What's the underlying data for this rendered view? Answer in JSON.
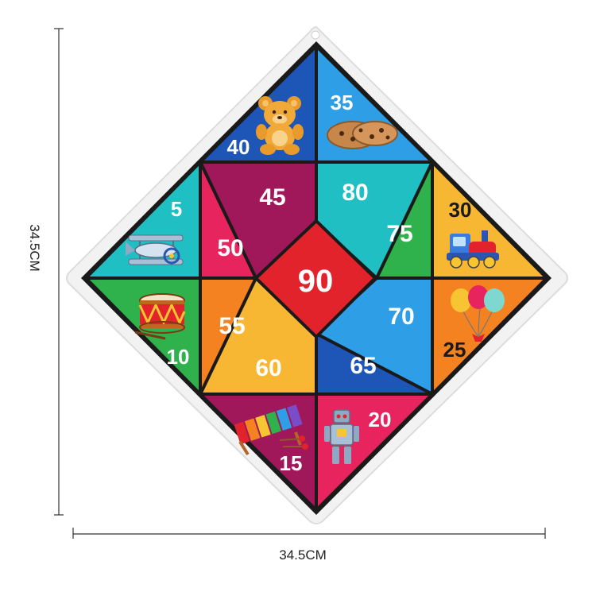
{
  "dimensions": {
    "width_label": "34.5CM",
    "height_label": "34.5CM"
  },
  "board": {
    "center": "90",
    "scores": {
      "s5": "5",
      "s10": "10",
      "s15": "15",
      "s20": "20",
      "s25": "25",
      "s30": "30",
      "s35": "35",
      "s40": "40",
      "s45": "45",
      "s50": "50",
      "s55": "55",
      "s60": "60",
      "s65": "65",
      "s70": "70",
      "s75": "75",
      "s80": "80"
    },
    "icons": [
      "teddy-bear-icon",
      "cookies-icon",
      "toy-train-icon",
      "balloons-icon",
      "robot-icon",
      "xylophone-icon",
      "drum-icon",
      "airplane-icon"
    ]
  },
  "colors": {
    "felt": "#f3f3f3",
    "border": "#1a1a1a",
    "red": "#e3232b",
    "pink": "#e8245e",
    "maroon": "#a0185a",
    "blue": "#1e56b8",
    "skyblue": "#2e9ee6",
    "teal": "#20bfc4",
    "green": "#2fb14c",
    "orange": "#f58220",
    "yellow": "#f7b733",
    "magenta": "#c0186a"
  }
}
